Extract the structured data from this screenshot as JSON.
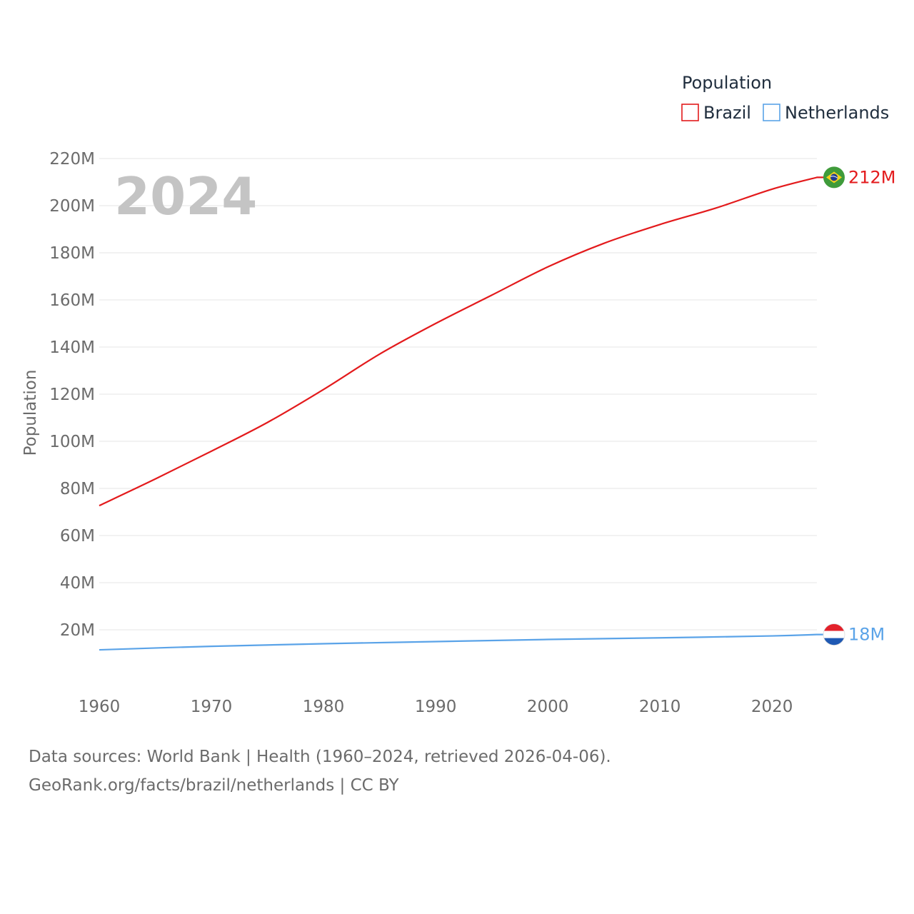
{
  "chart_data": {
    "type": "line",
    "year_label": "2024",
    "ylabel": "Population",
    "legend": {
      "title": "Population",
      "position": "top-right"
    },
    "x_ticks": [
      1960,
      1970,
      1980,
      1990,
      2000,
      2010,
      2020
    ],
    "xlim": [
      1960,
      2024
    ],
    "y_ticks": [
      20000000,
      40000000,
      60000000,
      80000000,
      100000000,
      120000000,
      140000000,
      160000000,
      180000000,
      200000000,
      220000000
    ],
    "y_tick_labels": [
      "20M",
      "40M",
      "60M",
      "80M",
      "100M",
      "120M",
      "140M",
      "160M",
      "180M",
      "200M",
      "220M"
    ],
    "ylim": [
      0,
      220000000
    ],
    "series": [
      {
        "name": "Brazil",
        "color": "#e31a1c",
        "end_label": "212M",
        "flag": "brazil-flag",
        "x": [
          1960,
          1965,
          1970,
          1975,
          1980,
          1985,
          1990,
          1995,
          2000,
          2005,
          2010,
          2015,
          2020,
          2024
        ],
        "values": [
          72700000,
          84000000,
          95800000,
          108000000,
          122000000,
          137000000,
          150000000,
          162000000,
          174000000,
          184000000,
          192000000,
          199000000,
          207000000,
          212000000
        ]
      },
      {
        "name": "Netherlands",
        "color": "#5aa3e8",
        "end_label": "18M",
        "flag": "netherlands-flag",
        "x": [
          1960,
          1970,
          1980,
          1990,
          2000,
          2010,
          2020,
          2024
        ],
        "values": [
          11500000,
          13000000,
          14100000,
          15000000,
          15900000,
          16600000,
          17400000,
          18000000
        ]
      }
    ]
  },
  "source": {
    "line1": "Data sources: World Bank | Health (1960–2024, retrieved 2026-04-06).",
    "line2": "GeoRank.org/facts/brazil/netherlands | CC BY"
  }
}
